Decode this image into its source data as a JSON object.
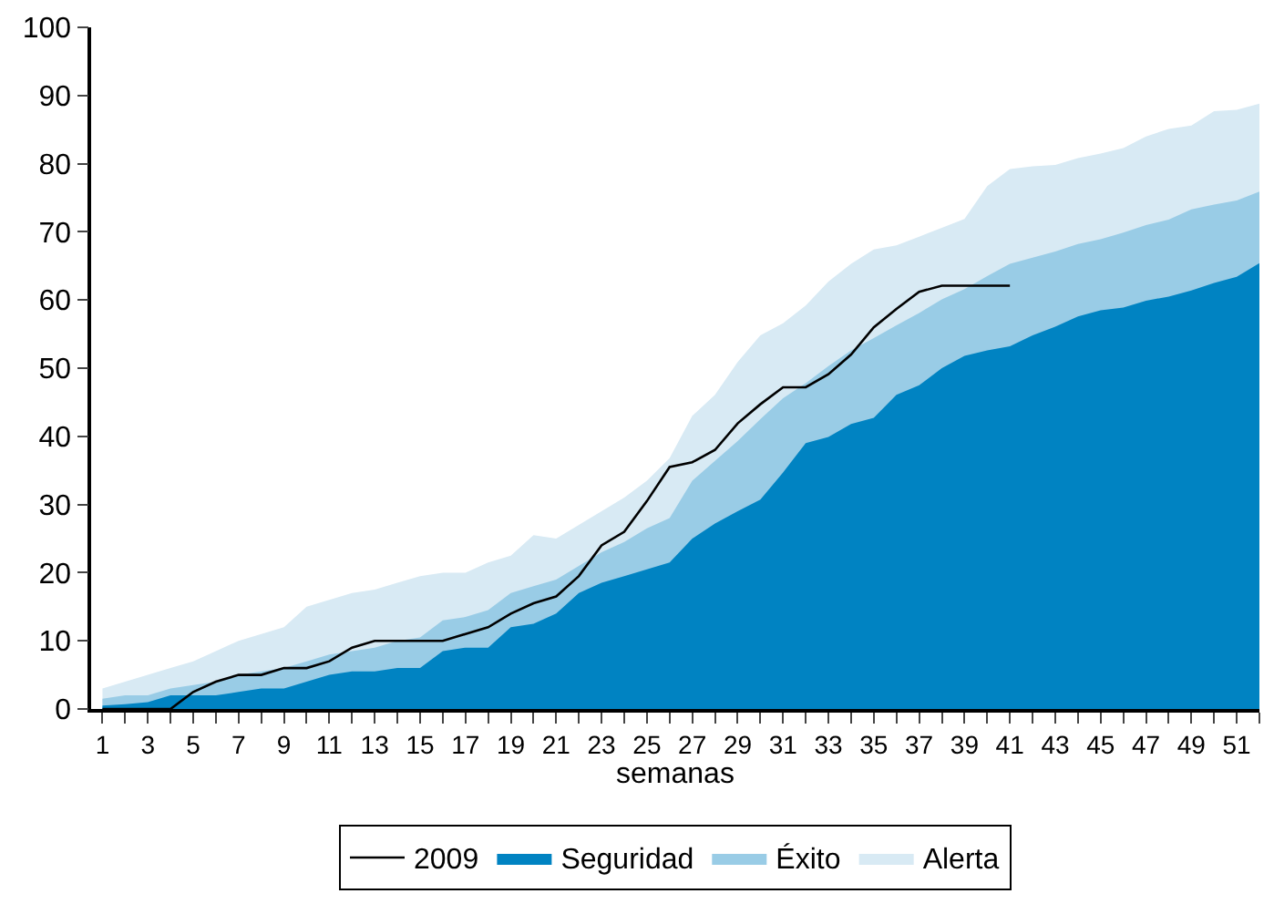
{
  "chart_data": {
    "type": "area",
    "xlabel": "semanas",
    "x": [
      1,
      2,
      3,
      4,
      5,
      6,
      7,
      8,
      9,
      10,
      11,
      12,
      13,
      14,
      15,
      16,
      17,
      18,
      19,
      20,
      21,
      22,
      23,
      24,
      25,
      26,
      27,
      28,
      29,
      30,
      31,
      32,
      33,
      34,
      35,
      36,
      37,
      38,
      39,
      40,
      41,
      42,
      43,
      44,
      45,
      46,
      47,
      48,
      49,
      50,
      51,
      52
    ],
    "xlim": [
      0.5,
      52
    ],
    "xticks": [
      1,
      {
        "value": 2,
        "label": null
      },
      3,
      {
        "value": 4,
        "label": null
      },
      5,
      {
        "value": 6,
        "label": null
      },
      7,
      {
        "value": 8,
        "label": null
      },
      9,
      {
        "value": 10,
        "label": null
      },
      11,
      {
        "value": 12,
        "label": null
      },
      13,
      {
        "value": 14,
        "label": null
      },
      15,
      {
        "value": 16,
        "label": null
      },
      17,
      {
        "value": 18,
        "label": null
      },
      19,
      {
        "value": 20,
        "label": null
      },
      21,
      {
        "value": 22,
        "label": null
      },
      23,
      {
        "value": 24,
        "label": null
      },
      25,
      {
        "value": 26,
        "label": null
      },
      27,
      {
        "value": 28,
        "label": null
      },
      29,
      {
        "value": 30,
        "label": null
      },
      31,
      {
        "value": 32,
        "label": null
      },
      33,
      {
        "value": 34,
        "label": null
      },
      35,
      {
        "value": 36,
        "label": null
      },
      37,
      {
        "value": 38,
        "label": null
      },
      39,
      {
        "value": 40,
        "label": null
      },
      41,
      {
        "value": 42,
        "label": null
      },
      43,
      {
        "value": 44,
        "label": null
      },
      45,
      {
        "value": 46,
        "label": null
      },
      47,
      {
        "value": 48,
        "label": null
      },
      49,
      {
        "value": 50,
        "label": null
      },
      51,
      {
        "value": 52,
        "label": null
      }
    ],
    "ylim": [
      0,
      100
    ],
    "yticks": [
      0,
      10,
      20,
      30,
      40,
      50,
      60,
      70,
      80,
      90,
      100
    ],
    "legend": "bottom",
    "series": [
      {
        "name": "Alerta",
        "color": "#d8eaf4",
        "values": [
          3,
          4,
          5,
          6,
          7,
          8.5,
          10,
          11,
          12,
          15,
          16,
          17,
          17.5,
          18.5,
          19.5,
          20,
          20,
          21.5,
          22.5,
          25.5,
          25,
          27,
          29,
          31,
          33.5,
          36.8,
          43.0,
          46.1,
          50.9,
          54.8,
          56.6,
          59.2,
          62.7,
          65.3,
          67.4,
          68.0,
          69.3,
          70.6,
          71.9,
          76.7,
          79.2,
          79.6,
          79.8,
          80.8,
          81.5,
          82.3,
          84.0,
          85.1,
          85.6,
          87.7,
          87.9,
          88.8
        ]
      },
      {
        "name": "Éxito",
        "color": "#99cce6",
        "values": [
          1.5,
          2,
          2,
          3,
          3.5,
          4,
          5,
          5.5,
          6,
          7,
          8,
          8.5,
          9,
          10,
          10.5,
          13,
          13.5,
          14.5,
          17,
          18,
          19,
          21,
          23,
          24.5,
          26.5,
          28,
          33.5,
          36.4,
          39.3,
          42.5,
          45.6,
          47.8,
          50.3,
          52.6,
          54.4,
          56.3,
          58.1,
          60.1,
          61.6,
          63.5,
          65.3,
          66.2,
          67.1,
          68.2,
          68.9,
          69.9,
          71.0,
          71.8,
          73.3,
          74.0,
          74.6,
          75.9
        ]
      },
      {
        "name": "Seguridad",
        "color": "#0083c2",
        "values": [
          0.5,
          0.7,
          1,
          2,
          2,
          2,
          2.5,
          3,
          3,
          4,
          5,
          5.5,
          5.5,
          6,
          6,
          8.5,
          9,
          9,
          12,
          12.5,
          14,
          17,
          18.5,
          19.5,
          20.5,
          21.5,
          25.0,
          27.2,
          29.0,
          30.7,
          34.7,
          39.0,
          39.9,
          41.8,
          42.7,
          46.1,
          47.5,
          50.0,
          51.8,
          52.6,
          53.2,
          54.8,
          56.1,
          57.6,
          58.5,
          58.9,
          59.9,
          60.5,
          61.4,
          62.5,
          63.4,
          65.4
        ]
      },
      {
        "name": "2009",
        "type": "line",
        "color": "#000000",
        "values": [
          0,
          0,
          0,
          0,
          2.5,
          4,
          5,
          5,
          6,
          6,
          7,
          9,
          10,
          10,
          10,
          10,
          11,
          12,
          14,
          15.5,
          16.5,
          19.5,
          24,
          26,
          30.5,
          35.5,
          36.2,
          38.0,
          41.9,
          44.7,
          47.2,
          47.2,
          49.1,
          52.0,
          56.0,
          58.7,
          61.2,
          62.1,
          62.1,
          62.1,
          62.1,
          null,
          null,
          null,
          null,
          null,
          null,
          null,
          null,
          null,
          null,
          null
        ]
      }
    ]
  }
}
